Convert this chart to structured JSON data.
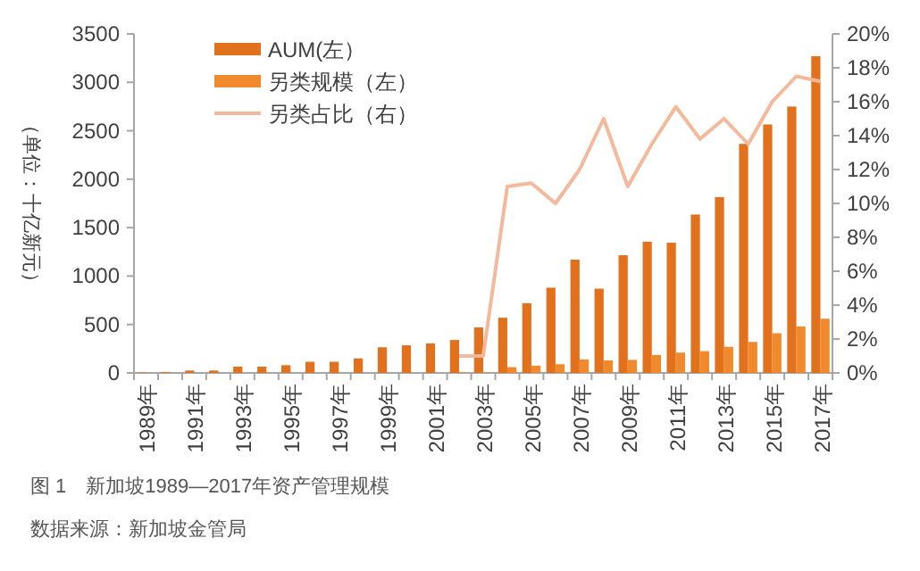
{
  "chart_data": {
    "type": "bar",
    "categories": [
      "1989年",
      null,
      "1991年",
      null,
      "1993年",
      null,
      "1995年",
      null,
      "1997年",
      null,
      "1999年",
      null,
      "2001年",
      null,
      "2003年",
      null,
      "2005年",
      null,
      "2007年",
      null,
      "2009年",
      null,
      "2011年",
      null,
      "2013年",
      null,
      "2015年",
      null,
      "2017年"
    ],
    "ylabel": "（单位：十亿新元）",
    "ylim": [
      0,
      3500
    ],
    "yticks": [
      0,
      500,
      1000,
      1500,
      2000,
      2500,
      3000,
      3500
    ],
    "y2lim": [
      0,
      20
    ],
    "y2ticks": [
      {
        "value": 0,
        "label": "0%"
      },
      {
        "value": 2,
        "label": "2%"
      },
      {
        "value": 4,
        "label": "4%"
      },
      {
        "value": 6,
        "label": "6%"
      },
      {
        "value": 8,
        "label": "8%"
      },
      {
        "value": 10,
        "label": "10%"
      },
      {
        "value": 12,
        "label": "12%"
      },
      {
        "value": 14,
        "label": "14%"
      },
      {
        "value": 16,
        "label": "16%"
      },
      {
        "value": 18,
        "label": "18%"
      },
      {
        "value": 20,
        "label": "20%"
      }
    ],
    "series": [
      {
        "name": "AUM(左）",
        "color": "#e2711d",
        "values": [
          5,
          10,
          25,
          25,
          65,
          65,
          80,
          115,
          115,
          150,
          265,
          285,
          305,
          340,
          470,
          570,
          720,
          880,
          1170,
          870,
          1215,
          1355,
          1345,
          1635,
          1815,
          2365,
          2565,
          2750,
          3270
        ]
      },
      {
        "name": "另类规模（左）",
        "color": "#f08a2c",
        "values": [
          null,
          null,
          null,
          null,
          null,
          null,
          null,
          null,
          null,
          null,
          null,
          null,
          null,
          5,
          5,
          60,
          75,
          90,
          140,
          130,
          135,
          185,
          210,
          225,
          270,
          320,
          410,
          480,
          560
        ]
      },
      {
        "name": "另类占比（右）",
        "type": "line",
        "axis": "y2",
        "color": "#f4b89a",
        "values": [
          null,
          null,
          null,
          null,
          null,
          null,
          null,
          null,
          null,
          null,
          null,
          null,
          null,
          1,
          1,
          11,
          11.2,
          10,
          12,
          15,
          11,
          13.5,
          15.7,
          13.8,
          15,
          13.5,
          16,
          17.5,
          17.2
        ]
      }
    ],
    "legend": "top left",
    "grid": false,
    "annotations": [
      "图 1　新加坡1989—2017年资产管理规模",
      "数据来源：新加坡金管局"
    ]
  }
}
